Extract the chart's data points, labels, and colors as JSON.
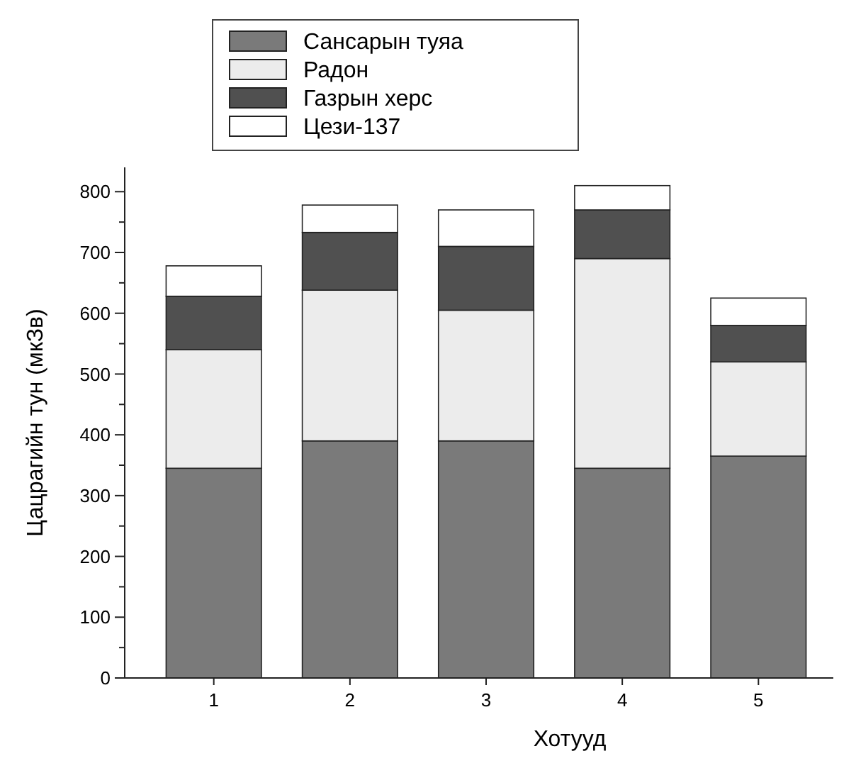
{
  "chart_data": {
    "type": "bar",
    "stacked": true,
    "xlabel": "Хотууд",
    "ylabel": "Цацрагийн тун (мкЗв)",
    "categories": [
      "1",
      "2",
      "3",
      "4",
      "5"
    ],
    "series": [
      {
        "name": "Сансарын туяа",
        "color": "#7a7a7a",
        "values": [
          345,
          390,
          390,
          345,
          365
        ]
      },
      {
        "name": "Радон",
        "color": "#ececec",
        "values": [
          195,
          248,
          215,
          345,
          155
        ]
      },
      {
        "name": "Газрын херс",
        "color": "#505050",
        "values": [
          88,
          95,
          105,
          80,
          60
        ]
      },
      {
        "name": "Цези-137",
        "color": "#ffffff",
        "values": [
          50,
          45,
          60,
          40,
          45
        ]
      }
    ],
    "ylim": [
      0,
      840
    ],
    "yticks": [
      0,
      {
        "value": 50,
        "label": null
      },
      100,
      {
        "value": 150,
        "label": null
      },
      200,
      {
        "value": 250,
        "label": null
      },
      300,
      {
        "value": 350,
        "label": null
      },
      400,
      {
        "value": 450,
        "label": null
      },
      500,
      {
        "value": 550,
        "label": null
      },
      600,
      {
        "value": 650,
        "label": null
      },
      700,
      {
        "value": 750,
        "label": null
      },
      800
    ],
    "grid": false,
    "legend": "top left"
  }
}
